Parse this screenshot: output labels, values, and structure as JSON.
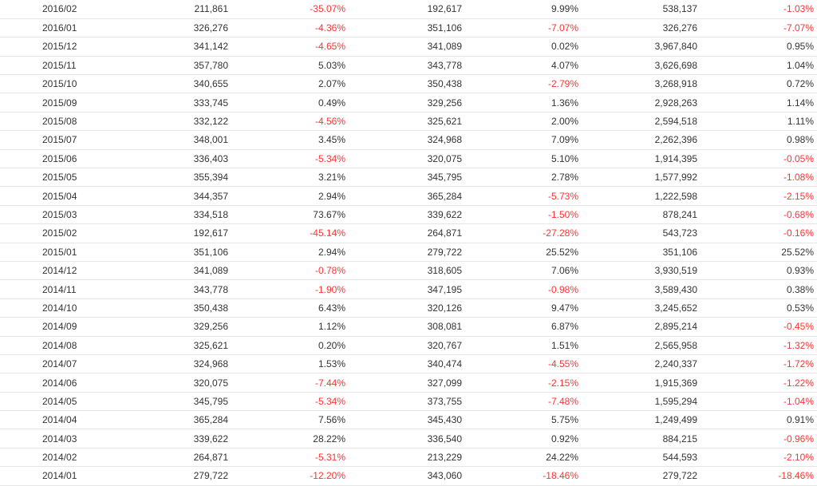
{
  "colors": {
    "negative": "#ff3333",
    "text": "#333333",
    "row_border": "#e6e6e6"
  },
  "rows": [
    {
      "month": "2016/02",
      "v1": "211,861",
      "r1": "-35.07%",
      "v2": "192,617",
      "r2": "9.99%",
      "v3": "538,137",
      "r3": "-1.03%"
    },
    {
      "month": "2016/01",
      "v1": "326,276",
      "r1": "-4.36%",
      "v2": "351,106",
      "r2": "-7.07%",
      "v3": "326,276",
      "r3": "-7.07%"
    },
    {
      "month": "2015/12",
      "v1": "341,142",
      "r1": "-4.65%",
      "v2": "341,089",
      "r2": "0.02%",
      "v3": "3,967,840",
      "r3": "0.95%"
    },
    {
      "month": "2015/11",
      "v1": "357,780",
      "r1": "5.03%",
      "v2": "343,778",
      "r2": "4.07%",
      "v3": "3,626,698",
      "r3": "1.04%"
    },
    {
      "month": "2015/10",
      "v1": "340,655",
      "r1": "2.07%",
      "v2": "350,438",
      "r2": "-2.79%",
      "v3": "3,268,918",
      "r3": "0.72%"
    },
    {
      "month": "2015/09",
      "v1": "333,745",
      "r1": "0.49%",
      "v2": "329,256",
      "r2": "1.36%",
      "v3": "2,928,263",
      "r3": "1.14%"
    },
    {
      "month": "2015/08",
      "v1": "332,122",
      "r1": "-4.56%",
      "v2": "325,621",
      "r2": "2.00%",
      "v3": "2,594,518",
      "r3": "1.11%"
    },
    {
      "month": "2015/07",
      "v1": "348,001",
      "r1": "3.45%",
      "v2": "324,968",
      "r2": "7.09%",
      "v3": "2,262,396",
      "r3": "0.98%"
    },
    {
      "month": "2015/06",
      "v1": "336,403",
      "r1": "-5.34%",
      "v2": "320,075",
      "r2": "5.10%",
      "v3": "1,914,395",
      "r3": "-0.05%"
    },
    {
      "month": "2015/05",
      "v1": "355,394",
      "r1": "3.21%",
      "v2": "345,795",
      "r2": "2.78%",
      "v3": "1,577,992",
      "r3": "-1.08%"
    },
    {
      "month": "2015/04",
      "v1": "344,357",
      "r1": "2.94%",
      "v2": "365,284",
      "r2": "-5.73%",
      "v3": "1,222,598",
      "r3": "-2.15%"
    },
    {
      "month": "2015/03",
      "v1": "334,518",
      "r1": "73.67%",
      "v2": "339,622",
      "r2": "-1.50%",
      "v3": "878,241",
      "r3": "-0.68%"
    },
    {
      "month": "2015/02",
      "v1": "192,617",
      "r1": "-45.14%",
      "v2": "264,871",
      "r2": "-27.28%",
      "v3": "543,723",
      "r3": "-0.16%"
    },
    {
      "month": "2015/01",
      "v1": "351,106",
      "r1": "2.94%",
      "v2": "279,722",
      "r2": "25.52%",
      "v3": "351,106",
      "r3": "25.52%"
    },
    {
      "month": "2014/12",
      "v1": "341,089",
      "r1": "-0.78%",
      "v2": "318,605",
      "r2": "7.06%",
      "v3": "3,930,519",
      "r3": "0.93%"
    },
    {
      "month": "2014/11",
      "v1": "343,778",
      "r1": "-1.90%",
      "v2": "347,195",
      "r2": "-0.98%",
      "v3": "3,589,430",
      "r3": "0.38%"
    },
    {
      "month": "2014/10",
      "v1": "350,438",
      "r1": "6.43%",
      "v2": "320,126",
      "r2": "9.47%",
      "v3": "3,245,652",
      "r3": "0.53%"
    },
    {
      "month": "2014/09",
      "v1": "329,256",
      "r1": "1.12%",
      "v2": "308,081",
      "r2": "6.87%",
      "v3": "2,895,214",
      "r3": "-0.45%"
    },
    {
      "month": "2014/08",
      "v1": "325,621",
      "r1": "0.20%",
      "v2": "320,767",
      "r2": "1.51%",
      "v3": "2,565,958",
      "r3": "-1.32%"
    },
    {
      "month": "2014/07",
      "v1": "324,968",
      "r1": "1.53%",
      "v2": "340,474",
      "r2": "-4.55%",
      "v3": "2,240,337",
      "r3": "-1.72%"
    },
    {
      "month": "2014/06",
      "v1": "320,075",
      "r1": "-7.44%",
      "v2": "327,099",
      "r2": "-2.15%",
      "v3": "1,915,369",
      "r3": "-1.22%"
    },
    {
      "month": "2014/05",
      "v1": "345,795",
      "r1": "-5.34%",
      "v2": "373,755",
      "r2": "-7.48%",
      "v3": "1,595,294",
      "r3": "-1.04%"
    },
    {
      "month": "2014/04",
      "v1": "365,284",
      "r1": "7.56%",
      "v2": "345,430",
      "r2": "5.75%",
      "v3": "1,249,499",
      "r3": "0.91%"
    },
    {
      "month": "2014/03",
      "v1": "339,622",
      "r1": "28.22%",
      "v2": "336,540",
      "r2": "0.92%",
      "v3": "884,215",
      "r3": "-0.96%"
    },
    {
      "month": "2014/02",
      "v1": "264,871",
      "r1": "-5.31%",
      "v2": "213,229",
      "r2": "24.22%",
      "v3": "544,593",
      "r3": "-2.10%"
    },
    {
      "month": "2014/01",
      "v1": "279,722",
      "r1": "-12.20%",
      "v2": "343,060",
      "r2": "-18.46%",
      "v3": "279,722",
      "r3": "-18.46%"
    }
  ]
}
